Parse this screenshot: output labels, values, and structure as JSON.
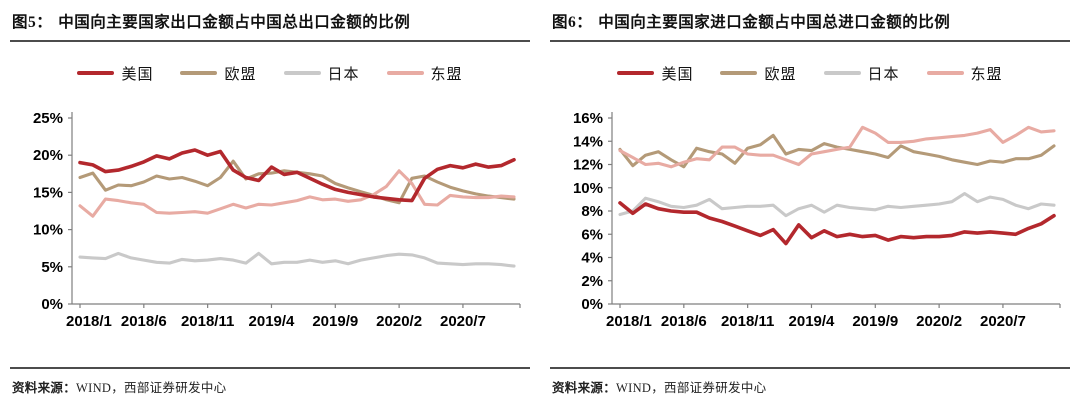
{
  "panels": [
    {
      "title_prefix": "图5：",
      "title": "中国向主要国家出口金额占中国总出口金额的比例",
      "source_label": "资料来源：",
      "source": "WIND，西部证券研发中心"
    },
    {
      "title_prefix": "图6：",
      "title": "中国向主要国家进口金额占中国总进口金额的比例",
      "source_label": "资料来源：",
      "source": "WIND，西部证券研发中心"
    }
  ],
  "colors": {
    "us": "#b3282d",
    "eu": "#b49a78",
    "japan": "#c9c9c9",
    "asean": "#e8aba3",
    "axis": "#7f7f7f",
    "tick_label": "#000000",
    "rule": "#4c4c4c"
  },
  "chart_data": [
    {
      "type": "line",
      "title": "中国向主要国家出口金额占中国总出口金额的比例",
      "xlabel": "",
      "ylabel": "",
      "ylim": [
        0,
        25
      ],
      "grid": false,
      "legend_position": "top",
      "draw_order": [
        2,
        1,
        3,
        0
      ],
      "ytick_values": [
        0,
        5,
        10,
        15,
        20,
        25
      ],
      "ytick_labels": [
        "0%",
        "5%",
        "10%",
        "15%",
        "20%",
        "25%"
      ],
      "x": [
        "2018/1",
        "2018/2",
        "2018/3",
        "2018/4",
        "2018/5",
        "2018/6",
        "2018/7",
        "2018/8",
        "2018/9",
        "2018/10",
        "2018/11",
        "2018/12",
        "2019/1",
        "2019/2",
        "2019/3",
        "2019/4",
        "2019/5",
        "2019/6",
        "2019/7",
        "2019/8",
        "2019/9",
        "2019/10",
        "2019/11",
        "2019/12",
        "2020/1",
        "2020/2",
        "2020/3",
        "2020/4",
        "2020/5",
        "2020/6",
        "2020/7",
        "2020/8",
        "2020/9",
        "2020/10",
        "2020/11"
      ],
      "x_tick_indices": [
        0,
        5,
        10,
        15,
        20,
        25,
        30
      ],
      "x_tick_labels": [
        "2018/1",
        "2018/6",
        "2018/11",
        "2019/4",
        "2019/9",
        "2020/2",
        "2020/7"
      ],
      "series": [
        {
          "name": "美国",
          "color": "#b3282d",
          "values": [
            19.0,
            18.7,
            17.8,
            18.0,
            18.5,
            19.1,
            19.9,
            19.5,
            20.3,
            20.7,
            20.0,
            20.5,
            18.0,
            17.0,
            16.6,
            18.4,
            17.4,
            17.7,
            16.9,
            16.1,
            15.4,
            15.0,
            14.7,
            14.4,
            14.2,
            14.0,
            13.9,
            16.9,
            18.1,
            18.6,
            18.3,
            18.8,
            18.4,
            18.6,
            19.4
          ]
        },
        {
          "name": "欧盟",
          "color": "#b49a78",
          "values": [
            17.0,
            17.6,
            15.3,
            16.0,
            15.9,
            16.4,
            17.2,
            16.8,
            17.0,
            16.5,
            15.9,
            17.0,
            19.2,
            16.8,
            17.5,
            17.6,
            17.9,
            17.7,
            17.5,
            17.2,
            16.2,
            15.6,
            15.1,
            14.6,
            14.0,
            13.6,
            16.9,
            17.2,
            16.4,
            15.7,
            15.2,
            14.8,
            14.5,
            14.3,
            14.1
          ]
        },
        {
          "name": "日本",
          "color": "#c9c9c9",
          "values": [
            6.3,
            6.2,
            6.1,
            6.8,
            6.2,
            5.9,
            5.6,
            5.5,
            6.0,
            5.8,
            5.9,
            6.1,
            5.9,
            5.5,
            6.8,
            5.4,
            5.6,
            5.6,
            5.9,
            5.6,
            5.8,
            5.4,
            5.9,
            6.2,
            6.5,
            6.7,
            6.6,
            6.2,
            5.5,
            5.4,
            5.3,
            5.4,
            5.4,
            5.3,
            5.1
          ]
        },
        {
          "name": "东盟",
          "color": "#e8aba3",
          "values": [
            13.2,
            11.8,
            14.1,
            13.9,
            13.6,
            13.4,
            12.3,
            12.2,
            12.3,
            12.4,
            12.2,
            12.8,
            13.4,
            12.9,
            13.4,
            13.3,
            13.6,
            13.9,
            14.4,
            14.0,
            14.1,
            13.8,
            14.0,
            14.7,
            15.8,
            17.9,
            16.2,
            13.4,
            13.3,
            14.6,
            14.4,
            14.3,
            14.3,
            14.5,
            14.4
          ]
        }
      ]
    },
    {
      "type": "line",
      "title": "中国向主要国家进口金额占中国总进口金额的比例",
      "xlabel": "",
      "ylabel": "",
      "ylim": [
        0,
        16
      ],
      "grid": false,
      "legend_position": "top",
      "draw_order": [
        2,
        1,
        3,
        0
      ],
      "ytick_values": [
        0,
        2,
        4,
        6,
        8,
        10,
        12,
        14,
        16
      ],
      "ytick_labels": [
        "0%",
        "2%",
        "4%",
        "6%",
        "8%",
        "10%",
        "12%",
        "14%",
        "16%"
      ],
      "x": [
        "2018/1",
        "2018/2",
        "2018/3",
        "2018/4",
        "2018/5",
        "2018/6",
        "2018/7",
        "2018/8",
        "2018/9",
        "2018/10",
        "2018/11",
        "2018/12",
        "2019/1",
        "2019/2",
        "2019/3",
        "2019/4",
        "2019/5",
        "2019/6",
        "2019/7",
        "2019/8",
        "2019/9",
        "2019/10",
        "2019/11",
        "2019/12",
        "2020/1",
        "2020/2",
        "2020/3",
        "2020/4",
        "2020/5",
        "2020/6",
        "2020/7",
        "2020/8",
        "2020/9",
        "2020/10",
        "2020/11"
      ],
      "x_tick_indices": [
        0,
        5,
        10,
        15,
        20,
        25,
        30
      ],
      "x_tick_labels": [
        "2018/1",
        "2018/6",
        "2018/11",
        "2019/4",
        "2019/9",
        "2020/2",
        "2020/7"
      ],
      "series": [
        {
          "name": "美国",
          "color": "#b3282d",
          "values": [
            8.7,
            7.8,
            8.6,
            8.2,
            8.0,
            7.9,
            7.9,
            7.4,
            7.1,
            6.7,
            6.3,
            5.9,
            6.4,
            5.2,
            6.8,
            5.7,
            6.3,
            5.8,
            6.0,
            5.8,
            5.9,
            5.5,
            5.8,
            5.7,
            5.8,
            5.8,
            5.9,
            6.2,
            6.1,
            6.2,
            6.1,
            6.0,
            6.5,
            6.9,
            7.6
          ]
        },
        {
          "name": "欧盟",
          "color": "#b49a78",
          "values": [
            13.3,
            11.9,
            12.8,
            13.1,
            12.4,
            11.8,
            13.4,
            13.1,
            12.9,
            12.1,
            13.4,
            13.7,
            14.5,
            12.9,
            13.3,
            13.2,
            13.8,
            13.5,
            13.3,
            13.1,
            12.9,
            12.6,
            13.6,
            13.1,
            12.9,
            12.7,
            12.4,
            12.2,
            12.0,
            12.3,
            12.2,
            12.5,
            12.5,
            12.8,
            13.6
          ]
        },
        {
          "name": "日本",
          "color": "#c9c9c9",
          "values": [
            7.7,
            8.0,
            9.1,
            8.8,
            8.4,
            8.3,
            8.5,
            9.0,
            8.2,
            8.3,
            8.4,
            8.4,
            8.5,
            7.6,
            8.2,
            8.5,
            7.9,
            8.5,
            8.3,
            8.2,
            8.1,
            8.4,
            8.3,
            8.4,
            8.5,
            8.6,
            8.8,
            9.5,
            8.8,
            9.2,
            9.0,
            8.5,
            8.2,
            8.6,
            8.5
          ]
        },
        {
          "name": "东盟",
          "color": "#e8aba3",
          "values": [
            13.2,
            12.6,
            12.0,
            12.1,
            11.8,
            12.2,
            12.5,
            12.4,
            13.5,
            13.5,
            12.9,
            12.8,
            12.8,
            12.4,
            12.0,
            12.9,
            13.1,
            13.3,
            13.5,
            15.2,
            14.7,
            13.9,
            13.9,
            14.0,
            14.2,
            14.3,
            14.4,
            14.5,
            14.7,
            15.0,
            13.9,
            14.5,
            15.2,
            14.8,
            14.9
          ]
        }
      ]
    }
  ]
}
